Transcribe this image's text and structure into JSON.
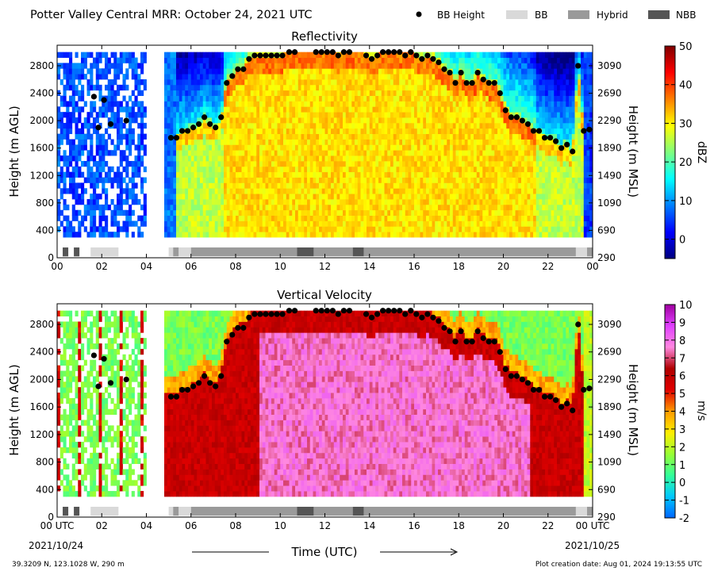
{
  "header": {
    "title": "Potter Valley Central MRR:  October 24, 2021 UTC",
    "legend": [
      {
        "label": "BB Height",
        "kind": "dot",
        "color": "#000000"
      },
      {
        "label": "BB",
        "kind": "swatch",
        "color": "#d9d9d9"
      },
      {
        "label": "Hybrid",
        "kind": "swatch",
        "color": "#9a9a9a"
      },
      {
        "label": "NBB",
        "kind": "swatch",
        "color": "#555555"
      }
    ]
  },
  "footer": {
    "location": "39.3209 N, 123.1028 W, 290 m",
    "creation": "Plot creation date: Aug 01, 2024 19:13:55 UTC",
    "xlabel": "Time (UTC)",
    "start_time": "00 UTC",
    "start_date": "2021/10/24",
    "end_time": "00 UTC",
    "end_date": "2021/10/25"
  },
  "axes": {
    "ylabel_left": "Height (m AGL)",
    "ylabel_right": "Height (m MSL)",
    "xticks_top": [
      "00",
      "02",
      "04",
      "06",
      "08",
      "10",
      "12",
      "14",
      "16",
      "18",
      "20",
      "22",
      "00"
    ],
    "xticks_bottom": [
      "00 UTC",
      "02",
      "04",
      "06",
      "08",
      "10",
      "12",
      "14",
      "16",
      "18",
      "20",
      "22",
      "00 UTC"
    ],
    "yticks_left": [
      "0",
      "400",
      "800",
      "1200",
      "1600",
      "2000",
      "2400",
      "2800"
    ],
    "yticks_right": [
      "290",
      "690",
      "1090",
      "1490",
      "1890",
      "2290",
      "2690",
      "3090"
    ]
  },
  "colors": {
    "dbz_scale": [
      "#00007f",
      "#0000ff",
      "#007fff",
      "#00ffff",
      "#7fff7f",
      "#ffff00",
      "#ff7f00",
      "#ff0000",
      "#7f0000"
    ],
    "velocity_scale": [
      "#0066ff",
      "#00c8ff",
      "#33ff99",
      "#99ff33",
      "#ffee00",
      "#ff9900",
      "#e10000",
      "#b00000",
      "#ff88e0",
      "#e040ff",
      "#a000a0"
    ],
    "bb_classes": {
      "BB": "#d9d9d9",
      "Hybrid": "#9a9a9a",
      "NBB": "#555555"
    }
  },
  "chart_data": [
    {
      "type": "heatmap",
      "title": "Reflectivity",
      "colorbar_label": "dBZ",
      "colorbar_range": [
        -5,
        50
      ],
      "colorbar_ticks": [
        "0",
        "10",
        "20",
        "30",
        "40",
        "50"
      ],
      "colorbar_tick_values": [
        0,
        10,
        20,
        30,
        40,
        50
      ],
      "xlim": [
        0,
        24
      ],
      "ylim": [
        0,
        3100
      ],
      "xlabel": "",
      "ylabel": "Height (m AGL)",
      "ylabel_right": "Height (m MSL)"
    },
    {
      "type": "heatmap",
      "title": "Vertical Velocity",
      "colorbar_label": "m/s",
      "colorbar_range": [
        -2,
        10
      ],
      "colorbar_ticks": [
        "-2",
        "-1",
        "0",
        "1",
        "2",
        "3",
        "4",
        "5",
        "6",
        "7",
        "8",
        "9",
        "10"
      ],
      "colorbar_tick_values": [
        -2,
        -1,
        0,
        1,
        2,
        3,
        4,
        5,
        6,
        7,
        8,
        9,
        10
      ],
      "xlim": [
        0,
        24
      ],
      "ylim": [
        0,
        3100
      ],
      "xlabel": "Time (UTC)",
      "ylabel": "Height (m AGL)",
      "ylabel_right": "Height (m MSL)"
    },
    {
      "type": "scatter",
      "name": "BB Height",
      "x_unit": "hours UTC",
      "y_unit": "m AGL",
      "points": [
        [
          1.65,
          2350
        ],
        [
          1.85,
          1900
        ],
        [
          2.1,
          2300
        ],
        [
          2.4,
          1950
        ],
        [
          3.1,
          2000
        ],
        [
          5.1,
          1750
        ],
        [
          5.35,
          1750
        ],
        [
          5.6,
          1850
        ],
        [
          5.85,
          1850
        ],
        [
          6.1,
          1900
        ],
        [
          6.35,
          1950
        ],
        [
          6.6,
          2050
        ],
        [
          6.85,
          1950
        ],
        [
          7.1,
          1900
        ],
        [
          7.35,
          2050
        ],
        [
          7.6,
          2550
        ],
        [
          7.85,
          2650
        ],
        [
          8.1,
          2750
        ],
        [
          8.35,
          2750
        ],
        [
          8.6,
          2900
        ],
        [
          8.85,
          2950
        ],
        [
          9.1,
          2950
        ],
        [
          9.35,
          2950
        ],
        [
          9.6,
          2950
        ],
        [
          9.85,
          2950
        ],
        [
          10.1,
          2950
        ],
        [
          10.4,
          3000
        ],
        [
          10.65,
          3000
        ],
        [
          11.6,
          3000
        ],
        [
          11.85,
          3000
        ],
        [
          12.1,
          3000
        ],
        [
          12.35,
          3000
        ],
        [
          12.6,
          2950
        ],
        [
          12.85,
          3000
        ],
        [
          13.1,
          3000
        ],
        [
          13.85,
          2950
        ],
        [
          14.1,
          2900
        ],
        [
          14.35,
          2950
        ],
        [
          14.6,
          3000
        ],
        [
          14.85,
          3000
        ],
        [
          15.1,
          3000
        ],
        [
          15.35,
          3000
        ],
        [
          15.6,
          2950
        ],
        [
          15.85,
          3000
        ],
        [
          16.1,
          2950
        ],
        [
          16.35,
          2900
        ],
        [
          16.6,
          2950
        ],
        [
          16.85,
          2900
        ],
        [
          17.1,
          2850
        ],
        [
          17.35,
          2750
        ],
        [
          17.6,
          2700
        ],
        [
          17.85,
          2550
        ],
        [
          18.1,
          2700
        ],
        [
          18.35,
          2550
        ],
        [
          18.6,
          2550
        ],
        [
          18.85,
          2700
        ],
        [
          19.1,
          2600
        ],
        [
          19.35,
          2550
        ],
        [
          19.6,
          2550
        ],
        [
          19.85,
          2400
        ],
        [
          20.1,
          2150
        ],
        [
          20.35,
          2050
        ],
        [
          20.6,
          2050
        ],
        [
          20.85,
          2000
        ],
        [
          21.1,
          1950
        ],
        [
          21.35,
          1850
        ],
        [
          21.6,
          1850
        ],
        [
          21.85,
          1750
        ],
        [
          22.1,
          1750
        ],
        [
          22.35,
          1700
        ],
        [
          22.6,
          1600
        ],
        [
          22.85,
          1650
        ],
        [
          23.1,
          1550
        ],
        [
          23.35,
          2800
        ],
        [
          23.6,
          1850
        ],
        [
          23.85,
          1870
        ]
      ]
    },
    {
      "type": "table",
      "name": "Bright band classification",
      "segments": [
        {
          "start": 0.25,
          "end": 0.5,
          "class": "NBB"
        },
        {
          "start": 0.75,
          "end": 1.0,
          "class": "NBB"
        },
        {
          "start": 1.5,
          "end": 2.75,
          "class": "BB"
        },
        {
          "start": 5.0,
          "end": 5.2,
          "class": "BB"
        },
        {
          "start": 5.2,
          "end": 5.45,
          "class": "Hybrid"
        },
        {
          "start": 5.45,
          "end": 6.0,
          "class": "BB"
        },
        {
          "start": 6.0,
          "end": 10.75,
          "class": "Hybrid"
        },
        {
          "start": 10.75,
          "end": 11.5,
          "class": "NBB"
        },
        {
          "start": 11.5,
          "end": 13.25,
          "class": "Hybrid"
        },
        {
          "start": 13.25,
          "end": 13.75,
          "class": "NBB"
        },
        {
          "start": 13.75,
          "end": 23.25,
          "class": "Hybrid"
        },
        {
          "start": 23.25,
          "end": 23.75,
          "class": "BB"
        },
        {
          "start": 23.75,
          "end": 24.0,
          "class": "Hybrid"
        }
      ]
    }
  ]
}
